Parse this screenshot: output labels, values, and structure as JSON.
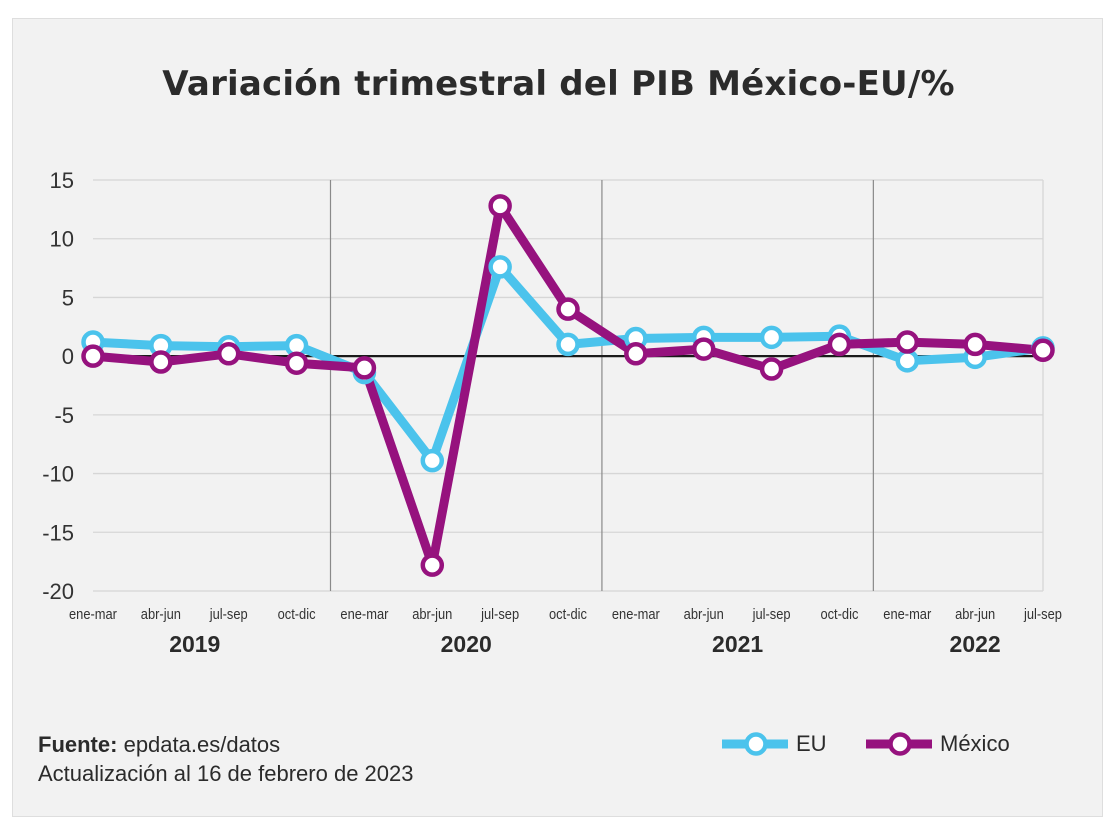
{
  "chart_data": {
    "type": "line",
    "title": "Variación trimestral del PIB México-EU/%",
    "xlabel": "",
    "ylabel": "",
    "ylim": [
      -20,
      15
    ],
    "yticks": [
      15,
      10,
      5,
      0,
      -5,
      -10,
      -15,
      -20
    ],
    "categories": [
      "ene-mar",
      "abr-jun",
      "jul-sep",
      "oct-dic",
      "ene-mar",
      "abr-jun",
      "jul-sep",
      "oct-dic",
      "ene-mar",
      "abr-jun",
      "jul-sep",
      "oct-dic",
      "ene-mar",
      "abr-jun",
      "jul-sep"
    ],
    "years": [
      {
        "label": "2019",
        "start": 0,
        "end": 3
      },
      {
        "label": "2020",
        "start": 4,
        "end": 7
      },
      {
        "label": "2021",
        "start": 8,
        "end": 11
      },
      {
        "label": "2022",
        "start": 12,
        "end": 14
      }
    ],
    "series": [
      {
        "name": "EU",
        "color": "#4bc3ec",
        "values": [
          1.2,
          0.9,
          0.8,
          0.9,
          -1.4,
          -8.9,
          7.6,
          1.0,
          1.5,
          1.6,
          1.6,
          1.7,
          -0.4,
          -0.1,
          0.7
        ]
      },
      {
        "name": "México",
        "color": "#96127e",
        "values": [
          0.0,
          -0.5,
          0.2,
          -0.6,
          -1.0,
          -17.8,
          12.8,
          4.0,
          0.2,
          0.6,
          -1.1,
          1.0,
          1.2,
          1.0,
          0.5
        ]
      }
    ]
  },
  "source": {
    "label": "Fuente:",
    "text": "epdata.es/datos",
    "updated": "Actualización al 16 de febrero de 2023"
  },
  "legend": {
    "eu": "EU",
    "mexico": "México"
  }
}
